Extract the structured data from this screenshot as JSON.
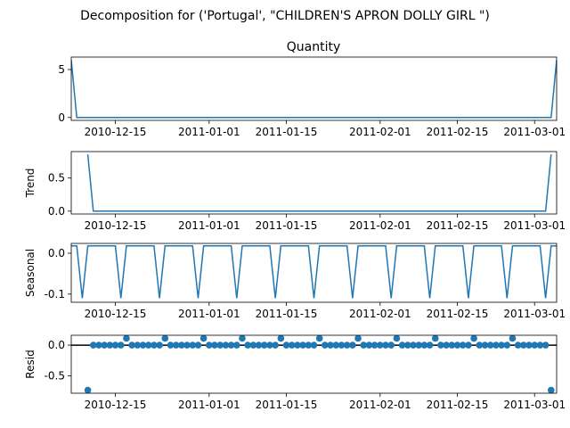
{
  "suptitle": "Decomposition for ('Portugal', \"CHILDREN'S APRON DOLLY GIRL \")",
  "line_color": "#1f77b4",
  "x_ticks": [
    "2010-12-15",
    "2011-01-01",
    "2011-01-15",
    "2011-02-01",
    "2011-02-15",
    "2011-03-01"
  ],
  "chart_data": [
    {
      "type": "line",
      "title": "Quantity",
      "ylabel": "",
      "x": [
        "2010-12-07",
        "2010-12-08",
        "2011-03-04",
        "2011-03-05"
      ],
      "y": [
        6,
        0,
        0,
        6
      ],
      "yticks": [
        "0",
        "5"
      ],
      "ylim": [
        -0.3,
        6.3
      ]
    },
    {
      "type": "line",
      "title": "",
      "ylabel": "Trend",
      "x": [
        "2010-12-10",
        "2010-12-11",
        "2011-03-03",
        "2011-03-04"
      ],
      "y": [
        0.857,
        0,
        0,
        0.857
      ],
      "yticks": [
        "0.0",
        "0.5"
      ],
      "ylim": [
        -0.043,
        0.9
      ]
    },
    {
      "type": "line",
      "title": "",
      "ylabel": "Seasonal",
      "x_start": "2010-12-07",
      "x_end": "2011-03-05",
      "weekly_pattern": [
        0.018,
        0.018,
        -0.11,
        0.018,
        0.018,
        0.018,
        0.018
      ],
      "yticks": [
        "0.0",
        "-0.1"
      ],
      "ylim": [
        -0.12,
        0.024
      ]
    },
    {
      "type": "scatter",
      "title": "",
      "ylabel": "Resid",
      "x_start": "2010-12-10",
      "x_end": "2011-03-04",
      "values_note_free": true,
      "endpoints": [
        {
          "x": "2010-12-10",
          "y": -0.73
        },
        {
          "x": "2011-03-04",
          "y": -0.73
        }
      ],
      "high_point_dates": [
        "2010-12-17",
        "2010-12-24",
        "2010-12-31",
        "2011-01-07",
        "2011-01-14",
        "2011-01-21",
        "2011-01-28",
        "2011-02-04",
        "2011-02-11",
        "2011-02-18",
        "2011-02-25"
      ],
      "high_value": 0.11,
      "default_value": 0,
      "baseline": 0,
      "yticks": [
        "0.0",
        "-0.5"
      ],
      "ylim": [
        -0.78,
        0.16
      ]
    }
  ]
}
